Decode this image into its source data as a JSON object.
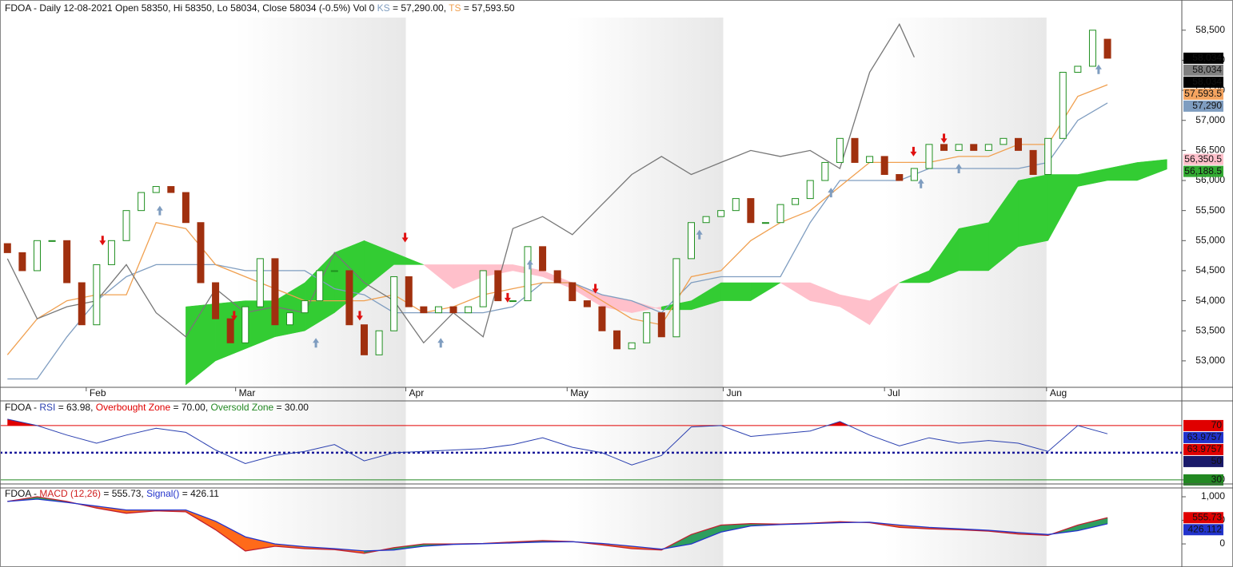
{
  "chart_data": [
    {
      "type": "candlestick",
      "header": [
        {
          "text": "FDOA - Daily 12-08-2021 Open 58350, Hi 58350, Lo 58034, Close 58034 (-0.5%) Vol 0 ",
          "color": "#111111"
        },
        {
          "text": "KS",
          "color": "#7f9dc0"
        },
        {
          "text": " = 57,290.00, ",
          "color": "#111111"
        },
        {
          "text": "TS",
          "color": "#f0a050"
        },
        {
          "text": " = 57,593.50",
          "color": "#111111"
        }
      ],
      "xlim": [
        -1,
        158
      ],
      "xticks": [
        {
          "value": 10.6,
          "label": "Feb"
        },
        {
          "value": 30.7,
          "label": "Mar"
        },
        {
          "value": 53.6,
          "label": "Apr"
        },
        {
          "value": 75.3,
          "label": "May"
        },
        {
          "value": 96.3,
          "label": "Jun"
        },
        {
          "value": 118,
          "label": "Jul"
        },
        {
          "value": 139.8,
          "label": "Aug"
        }
      ],
      "ylim": [
        52560,
        58710
      ],
      "yticks": [
        {
          "value": 53000,
          "label": "53,000"
        },
        {
          "value": 53500,
          "label": "53,500"
        },
        {
          "value": 54000,
          "label": "54,000"
        },
        {
          "value": 54500,
          "label": "54,500"
        },
        {
          "value": 55000,
          "label": "55,000"
        },
        {
          "value": 55500,
          "label": "55,500"
        },
        {
          "value": 56000,
          "label": "56,000"
        },
        {
          "value": 56500,
          "label": "56,500"
        },
        {
          "value": 57000,
          "label": "57,000"
        },
        {
          "value": 57500,
          "label": "57,500"
        },
        {
          "value": 58000,
          "label": "58,000"
        },
        {
          "value": 58500,
          "label": "58,500"
        }
      ],
      "x": [
        0,
        2,
        4,
        6,
        8,
        10,
        12,
        14,
        16,
        18,
        20,
        22,
        24,
        26,
        28,
        30,
        32,
        34,
        36,
        38,
        40,
        42,
        44,
        46,
        48,
        50,
        52,
        54,
        56,
        58,
        60,
        62,
        64,
        66,
        68,
        70,
        72,
        74,
        76,
        78,
        80,
        82,
        84,
        86,
        88,
        90,
        92,
        94,
        96,
        98,
        100,
        102,
        104,
        106,
        108,
        110,
        112,
        114,
        116,
        118,
        120,
        122,
        124,
        126,
        128,
        130,
        132,
        134,
        136,
        138,
        140,
        142,
        144,
        146,
        148
      ],
      "open": [
        54950,
        54800,
        54500,
        55000,
        55000,
        54300,
        53600,
        54600,
        55000,
        55500,
        55800,
        55900,
        55800,
        55300,
        54300,
        53700,
        53300,
        53900,
        54700,
        53600,
        53800,
        54000,
        54500,
        54500,
        53600,
        53100,
        53500,
        54400,
        53900,
        53800,
        53900,
        53800,
        53900,
        54500,
        54000,
        54000,
        54900,
        54500,
        54300,
        54000,
        53900,
        53500,
        53200,
        53300,
        53800,
        53400,
        54700,
        55300,
        55400,
        55500,
        55700,
        55300,
        55300,
        55600,
        55700,
        56000,
        56300,
        56700,
        56300,
        56400,
        56100,
        56000,
        56200,
        56600,
        56500,
        56600,
        56500,
        56600,
        56700,
        56500,
        56100,
        56700,
        57800,
        57900,
        58350
      ],
      "close": [
        54800,
        54500,
        55000,
        55000,
        54300,
        53600,
        54600,
        55000,
        55500,
        55800,
        55900,
        55800,
        55300,
        54300,
        53700,
        53300,
        53900,
        54700,
        53600,
        53800,
        54000,
        54500,
        54500,
        53600,
        53100,
        53500,
        54400,
        53900,
        53800,
        53900,
        53800,
        53900,
        54500,
        54000,
        54000,
        54900,
        54500,
        54300,
        54000,
        53900,
        53500,
        53200,
        53300,
        53800,
        53400,
        54700,
        55300,
        55400,
        55500,
        55700,
        55300,
        55300,
        55600,
        55700,
        56000,
        56300,
        56700,
        56300,
        56400,
        56100,
        56000,
        56200,
        56600,
        56500,
        56600,
        56500,
        56600,
        56700,
        56500,
        56100,
        56700,
        57800,
        57900,
        58500,
        58034
      ],
      "up_color": "#1f8f1f",
      "down_color": "#a0300f",
      "lines": [
        {
          "color": "#7f9dc0",
          "x": [
            0,
            4,
            8,
            12,
            16,
            20,
            24,
            28,
            32,
            36,
            40,
            44,
            48,
            52,
            56,
            60,
            64,
            68,
            72,
            76,
            80,
            84,
            88,
            92,
            96,
            100,
            104,
            108,
            112,
            116,
            120,
            124,
            128,
            132,
            136,
            140,
            144,
            148
          ],
          "values": [
            52700,
            52700,
            53400,
            54000,
            54400,
            54600,
            54600,
            54600,
            54500,
            54500,
            54500,
            54200,
            54100,
            53800,
            53800,
            53800,
            53800,
            53900,
            54300,
            54300,
            54100,
            54000,
            53800,
            54300,
            54400,
            54400,
            54400,
            55300,
            56000,
            56000,
            56000,
            56200,
            56200,
            56200,
            56200,
            56300,
            57000,
            57290
          ]
        },
        {
          "color": "#f0a050",
          "x": [
            0,
            4,
            8,
            12,
            16,
            20,
            24,
            28,
            32,
            36,
            40,
            44,
            48,
            52,
            56,
            60,
            64,
            68,
            72,
            76,
            80,
            84,
            88,
            92,
            96,
            100,
            104,
            108,
            112,
            116,
            120,
            124,
            128,
            132,
            136,
            140,
            144,
            148
          ],
          "values": [
            53100,
            53700,
            54000,
            54100,
            54100,
            55300,
            55200,
            54600,
            54400,
            54200,
            54000,
            54000,
            54000,
            54100,
            53800,
            53900,
            54100,
            54200,
            54300,
            54300,
            54000,
            53700,
            53600,
            54400,
            54500,
            55000,
            55300,
            55500,
            55900,
            56300,
            56300,
            56300,
            56400,
            56400,
            56600,
            56600,
            57400,
            57593.5
          ]
        },
        {
          "color": "#777777",
          "x": [
            0,
            4,
            8,
            12,
            16,
            20,
            24,
            28,
            32,
            36,
            40,
            44,
            48,
            52,
            56,
            60,
            64,
            68,
            72,
            76,
            80,
            84,
            88,
            92,
            96,
            100,
            104,
            108,
            112,
            116,
            120,
            122
          ],
          "values": [
            54700,
            53700,
            53900,
            54000,
            54600,
            53800,
            53400,
            54200,
            53800,
            53900,
            53800,
            54800,
            54300,
            54000,
            53300,
            53800,
            53400,
            55200,
            55400,
            55100,
            55600,
            56100,
            56400,
            56100,
            56300,
            56500,
            56400,
            56500,
            56200,
            57800,
            58600,
            58050
          ]
        }
      ],
      "cloud": {
        "x": [
          24,
          28,
          32,
          36,
          40,
          44,
          48,
          52,
          56,
          60,
          64,
          68,
          72,
          76,
          80,
          84,
          88,
          92,
          96,
          100,
          104,
          108,
          112,
          116,
          120,
          124,
          128,
          132,
          136,
          140,
          144,
          148,
          152,
          156
        ],
        "span_a": [
          53900,
          53950,
          54000,
          54000,
          54300,
          54800,
          55000,
          54800,
          54600,
          54200,
          54400,
          54500,
          54400,
          54200,
          53900,
          53800,
          53900,
          54000,
          54300,
          54300,
          54300,
          54000,
          53900,
          53600,
          54300,
          54500,
          55200,
          55300,
          56000,
          56100,
          56100,
          56200,
          56300,
          56350.5
        ],
        "span_b": [
          52600,
          53000,
          53200,
          53400,
          53500,
          53800,
          54200,
          54600,
          54600,
          54600,
          54600,
          54600,
          54500,
          54300,
          54100,
          54000,
          53850,
          53850,
          54000,
          54000,
          54300,
          54300,
          54100,
          54000,
          54300,
          54300,
          54500,
          54500,
          54900,
          55000,
          55900,
          56000,
          56000,
          56188.5
        ],
        "up_color": "#33cc33",
        "down_color": "#ffc0cb"
      },
      "sell_signals": {
        "color": "#e01010",
        "x": [
          12.8,
          30.5,
          47.4,
          53.5,
          67.3,
          79.1,
          121.9,
          126
        ],
        "y": [
          55000,
          53750,
          53750,
          55050,
          54050,
          54200,
          56480,
          56700
        ]
      },
      "buy_signals": {
        "color": "#7f9dc0",
        "x": [
          20.5,
          41.5,
          58.3,
          70.3,
          93.1,
          110.8,
          122.9,
          128,
          146.8
        ],
        "y": [
          55500,
          53300,
          53300,
          54600,
          55100,
          55800,
          55950,
          56200,
          57850
        ]
      },
      "badges": [
        {
          "value": 58034,
          "label": "58,034",
          "color": "#000000"
        },
        {
          "value": 58034,
          "label": "58,034",
          "color": "#808080"
        },
        {
          "value": 58034,
          "label": "58,034",
          "color": "#000000"
        },
        {
          "value": 57593.5,
          "label": "57,593.5",
          "color": "#f4a460"
        },
        {
          "value": 57290,
          "label": "57,290",
          "color": "#7f9dc0"
        },
        {
          "value": 56350.5,
          "label": "56,350.5",
          "color": "#ffc0cb"
        },
        {
          "value": 56188.5,
          "label": "56,188.5",
          "color": "#33aa33"
        }
      ]
    },
    {
      "type": "rsi",
      "header": [
        {
          "text": "FDOA - ",
          "color": "#111111"
        },
        {
          "text": "RSI",
          "color": "#2a3fb0"
        },
        {
          "text": " = 63.98, ",
          "color": "#111111"
        },
        {
          "text": "Overbought Zone",
          "color": "#e00000"
        },
        {
          "text": " = 70.00, ",
          "color": "#111111"
        },
        {
          "text": "Oversold Zone",
          "color": "#228822"
        },
        {
          "text": " = 30.00",
          "color": "#111111"
        }
      ],
      "xlim": [
        -1,
        158
      ],
      "ylim": [
        27.6,
        87.6
      ],
      "yticks": [
        30
      ],
      "overbought": 70,
      "oversold": 30,
      "midline": 50,
      "x": [
        0,
        4,
        8,
        12,
        16,
        20,
        24,
        28,
        32,
        36,
        40,
        44,
        48,
        52,
        56,
        60,
        64,
        68,
        72,
        76,
        80,
        84,
        88,
        92,
        96,
        100,
        104,
        108,
        112,
        116,
        120,
        124,
        128,
        132,
        136,
        140,
        144,
        148
      ],
      "values": [
        74.7,
        70,
        63,
        57,
        63,
        68,
        65,
        52,
        42,
        48,
        51,
        56,
        44,
        50,
        51,
        52,
        53,
        56,
        61,
        54,
        50,
        41,
        48,
        69,
        70,
        62,
        64,
        66,
        73,
        63,
        55,
        61,
        57,
        59,
        57,
        51,
        70,
        63.98
      ],
      "color": "#2a3fb0",
      "overbought_color": "#e00000",
      "midline_color": "#1a1a9a",
      "oversold_color": "#228822",
      "badges": [
        {
          "value": 70,
          "label": "70",
          "color": "#e00000"
        },
        {
          "value": 63.9757,
          "label": "63.9757",
          "color": "#2233cc"
        },
        {
          "value": 63.9757,
          "label": "63.9757",
          "color": "#e00000"
        },
        {
          "value": 50,
          "label": "50",
          "color": "#1a1a6a"
        },
        {
          "value": 30,
          "label": "30",
          "color": "#228822"
        }
      ]
    },
    {
      "type": "macd",
      "header": [
        {
          "text": "FDOA - ",
          "color": "#111111"
        },
        {
          "text": "MACD (12,26)",
          "color": "#d02020"
        },
        {
          "text": " = 555.73, ",
          "color": "#111111"
        },
        {
          "text": "Signal()",
          "color": "#2233cc"
        },
        {
          "text": " = 426.11",
          "color": "#111111"
        }
      ],
      "xlim": [
        -1,
        158
      ],
      "ylim": [
        -490,
        1170
      ],
      "yticks": [
        0,
        500,
        {
          "value": 1000,
          "label": "1,000"
        }
      ],
      "x": [
        0,
        4,
        8,
        12,
        16,
        20,
        24,
        28,
        32,
        36,
        40,
        44,
        48,
        52,
        56,
        60,
        64,
        68,
        72,
        76,
        80,
        84,
        88,
        92,
        96,
        100,
        104,
        108,
        112,
        116,
        120,
        124,
        128,
        132,
        136,
        140,
        144,
        148
      ],
      "macd": [
        900,
        1000,
        900,
        760,
        650,
        700,
        680,
        300,
        -150,
        -50,
        -100,
        -120,
        -200,
        -80,
        0,
        0,
        10,
        40,
        70,
        50,
        -20,
        -100,
        -130,
        200,
        400,
        430,
        420,
        440,
        470,
        450,
        350,
        320,
        300,
        270,
        210,
        180,
        400,
        555.73
      ],
      "signal": [
        900,
        950,
        880,
        800,
        720,
        720,
        720,
        480,
        150,
        0,
        -60,
        -100,
        -150,
        -130,
        -50,
        -10,
        5,
        20,
        40,
        45,
        10,
        -50,
        -110,
        0,
        250,
        380,
        410,
        430,
        450,
        460,
        400,
        350,
        320,
        290,
        240,
        200,
        280,
        426.11
      ],
      "macd_color": "#c02030",
      "signal_color": "#2233cc",
      "up_color": "#2e9e5e",
      "down_color": "#ff6a1a",
      "badges": [
        {
          "value": 555.73,
          "label": "555.73",
          "color": "#e00000"
        },
        {
          "value": 426.112,
          "label": "426.112",
          "color": "#2233cc"
        }
      ]
    }
  ]
}
